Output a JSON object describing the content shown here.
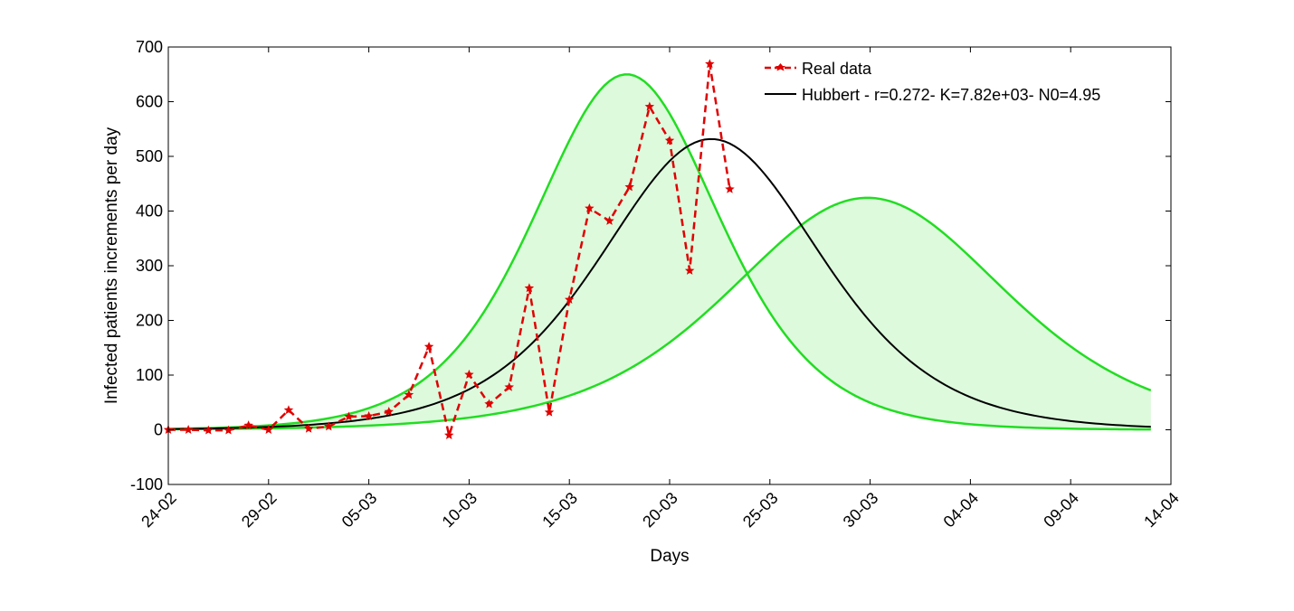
{
  "chart_data": {
    "type": "line",
    "xlabel": "Days",
    "ylabel": "Infected patients increments per day",
    "ylim": [
      -100,
      700
    ],
    "xlim_day_index": [
      0,
      50
    ],
    "yticks": [
      -100,
      0,
      100,
      200,
      300,
      400,
      500,
      600,
      700
    ],
    "xticks": [
      {
        "label": "24-02",
        "day": 0
      },
      {
        "label": "29-02",
        "day": 5
      },
      {
        "label": "05-03",
        "day": 10
      },
      {
        "label": "10-03",
        "day": 15
      },
      {
        "label": "15-03",
        "day": 20
      },
      {
        "label": "20-03",
        "day": 25
      },
      {
        "label": "25-03",
        "day": 30
      },
      {
        "label": "30-03",
        "day": 35
      },
      {
        "label": "04-04",
        "day": 40
      },
      {
        "label": "09-04",
        "day": 45
      },
      {
        "label": "14-04",
        "day": 50
      }
    ],
    "legend": {
      "position": "top-right",
      "entries": [
        {
          "label": "Real data",
          "color": "#e00000",
          "style": "dashed-with-markers"
        },
        {
          "label": "Hubbert - r=0.272- K=7.82e+03- N0=4.95",
          "color": "#000000",
          "style": "solid"
        }
      ]
    },
    "series": [
      {
        "name": "Real data",
        "color": "#e00000",
        "x": [
          0,
          1,
          2,
          3,
          4,
          5,
          6,
          7,
          8,
          9,
          10,
          11,
          12,
          13,
          14,
          15,
          16,
          17,
          18,
          19,
          20,
          21,
          22,
          23,
          24,
          25,
          26,
          27,
          28
        ],
        "values": [
          0,
          0,
          -1,
          -1,
          8,
          0,
          36,
          2,
          6,
          24,
          25,
          33,
          64,
          152,
          -10,
          101,
          47,
          78,
          259,
          32,
          238,
          405,
          382,
          444,
          591,
          529,
          291,
          669,
          440
        ]
      },
      {
        "name": "Hubbert - r=0.272- K=7.82e+03- N0=4.95",
        "color": "#000000",
        "model": {
          "r": 0.272,
          "K": 7820,
          "N0": 4.95,
          "x_start": 0,
          "x_end": 49
        }
      },
      {
        "name": "Upper bound",
        "color": "#22dd22",
        "model": {
          "r": 0.323,
          "K": 8050,
          "N0": 5.0,
          "x_start": 0,
          "x_end": 49
        }
      },
      {
        "name": "Lower bound",
        "color": "#22dd22",
        "model": {
          "r": 0.217,
          "K": 7820,
          "N0": 4.05,
          "x_start": 0,
          "x_end": 49
        }
      }
    ],
    "band_fill_color": "#ddfadd"
  }
}
